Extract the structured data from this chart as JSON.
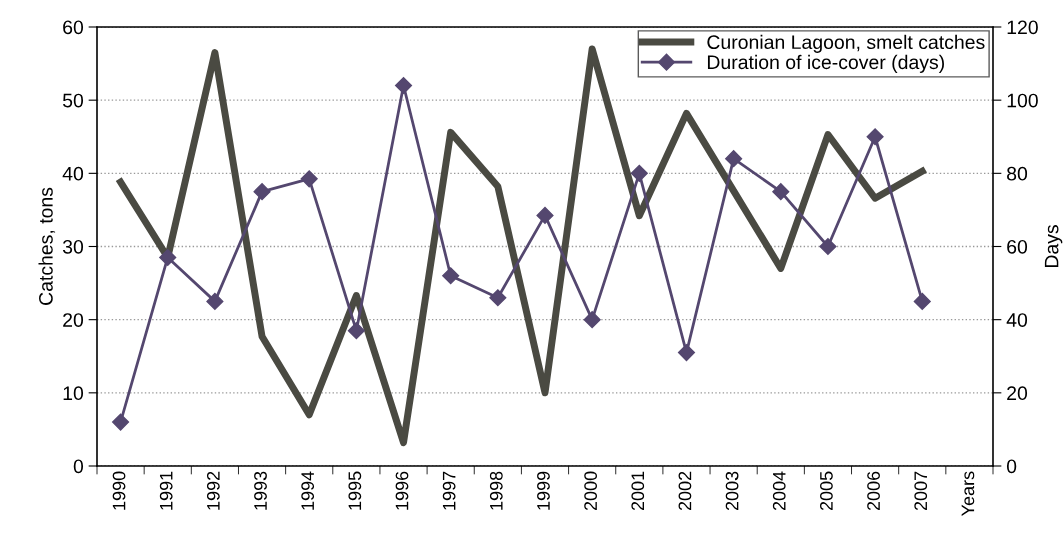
{
  "chart_data": {
    "type": "line",
    "categories": [
      "1990",
      "1991",
      "1992",
      "1993",
      "1994",
      "1995",
      "1996",
      "1997",
      "1998",
      "1999",
      "2000",
      "2001",
      "2002",
      "2003",
      "2004",
      "2005",
      "2006",
      "2007",
      "Years"
    ],
    "ylabel": "Catches, tons",
    "y2label": "Days",
    "ylim": [
      0,
      60
    ],
    "yticks": [
      0,
      10,
      20,
      30,
      40,
      50,
      60
    ],
    "y2lim": [
      0,
      120
    ],
    "y2ticks": [
      0,
      20,
      40,
      60,
      80,
      100,
      120
    ],
    "grid": "y",
    "legend": "top right",
    "series": [
      {
        "name": "Curonian Lagoon, smelt catches",
        "color": "#4a4a42",
        "marker": "none",
        "values": [
          38.8,
          28.5,
          56.5,
          17.7,
          7,
          23.3,
          3.2,
          45.6,
          38.2,
          10,
          57,
          34.2,
          48.2,
          37.6,
          27,
          45.3,
          36.6,
          40.3,
          null
        ]
      },
      {
        "name": "Duration of ice-cover (days)",
        "color": "#54476f",
        "marker": "diamond",
        "axis": "y2",
        "values": [
          12,
          57,
          45,
          75,
          78.5,
          37,
          104,
          52,
          46,
          68.5,
          40,
          80,
          31,
          84,
          75,
          60,
          90,
          45,
          null
        ]
      }
    ]
  }
}
